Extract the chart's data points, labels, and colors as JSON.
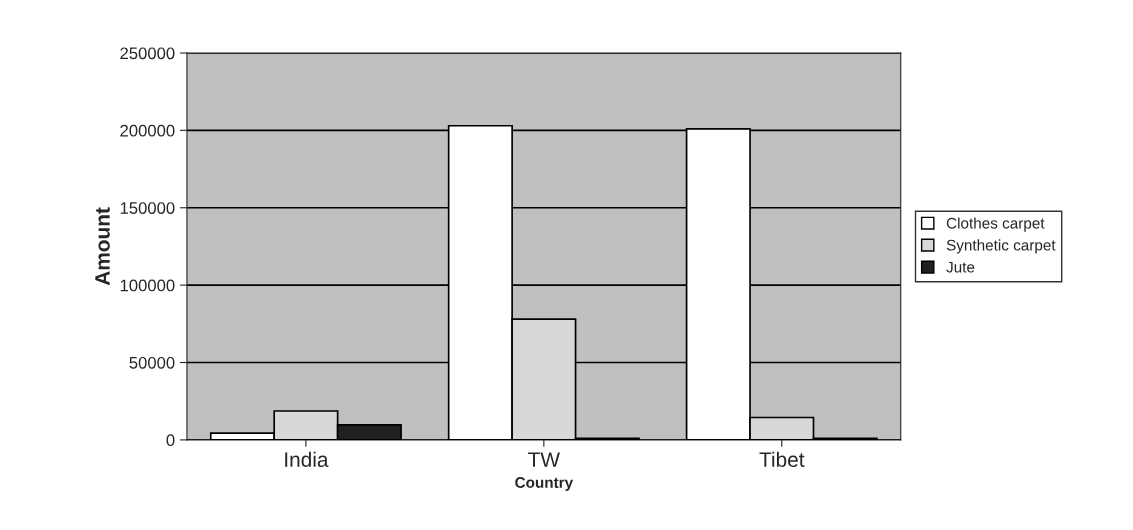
{
  "chart_data": {
    "type": "bar",
    "xlabel": "Country",
    "ylabel": "Amount",
    "categories": [
      "India",
      "TW",
      "Tibet"
    ],
    "series": [
      {
        "name": "Clothes carpet",
        "color": "#ffffff",
        "values": [
          4400,
          203000,
          201000
        ]
      },
      {
        "name": "Synthetic carpet",
        "color": "#d8d8d8",
        "values": [
          18700,
          78000,
          14500
        ]
      },
      {
        "name": "Jute",
        "color": "#202020",
        "values": [
          9700,
          1000,
          1000
        ]
      }
    ],
    "ylim": [
      0,
      250000
    ],
    "yticks": [
      0,
      50000,
      100000,
      150000,
      200000,
      250000
    ],
    "grid": "y",
    "legend": "right"
  }
}
